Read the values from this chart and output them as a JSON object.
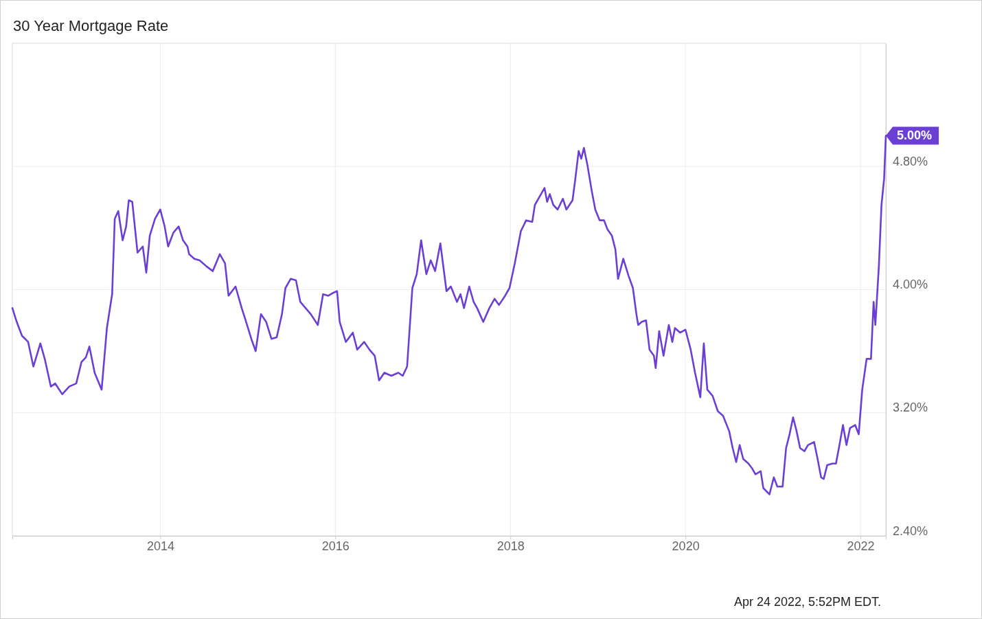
{
  "chart_data": {
    "type": "line",
    "title": "30 Year Mortgage Rate",
    "xlim": [
      2012.31,
      2022.29
    ],
    "xticks": [
      2014,
      2016,
      2018,
      2020,
      2022
    ],
    "ylim": [
      2.4,
      5.6
    ],
    "yticks": [
      {
        "value": 2.4,
        "label": "2.40%"
      },
      {
        "value": 3.2,
        "label": "3.20%"
      },
      {
        "value": 4.0,
        "label": "4.00%"
      },
      {
        "value": 4.8,
        "label": "4.80%"
      }
    ],
    "grid": true,
    "series": [
      {
        "color": "#6b3fd4",
        "x": [
          2012.31,
          2012.36,
          2012.42,
          2012.49,
          2012.55,
          2012.63,
          2012.68,
          2012.75,
          2012.8,
          2012.88,
          2012.96,
          2013.04,
          2013.1,
          2013.15,
          2013.19,
          2013.25,
          2013.33,
          2013.39,
          2013.45,
          2013.48,
          2013.52,
          2013.57,
          2013.61,
          2013.64,
          2013.68,
          2013.74,
          2013.8,
          2013.84,
          2013.88,
          2013.94,
          2014.0,
          2014.05,
          2014.09,
          2014.15,
          2014.21,
          2014.26,
          2014.31,
          2014.33,
          2014.39,
          2014.45,
          2014.53,
          2014.6,
          2014.68,
          2014.74,
          2014.78,
          2014.86,
          2014.93,
          2014.97,
          2015.04,
          2015.09,
          2015.15,
          2015.21,
          2015.27,
          2015.33,
          2015.39,
          2015.43,
          2015.49,
          2015.55,
          2015.6,
          2015.66,
          2015.72,
          2015.8,
          2015.86,
          2015.92,
          2015.98,
          2016.02,
          2016.05,
          2016.12,
          2016.2,
          2016.25,
          2016.33,
          2016.39,
          2016.45,
          2016.5,
          2016.56,
          2016.64,
          2016.72,
          2016.77,
          2016.82,
          2016.88,
          2016.93,
          2016.98,
          2017.04,
          2017.09,
          2017.14,
          2017.2,
          2017.27,
          2017.32,
          2017.39,
          2017.43,
          2017.47,
          2017.53,
          2017.58,
          2017.62,
          2017.69,
          2017.76,
          2017.82,
          2017.87,
          2017.94,
          2017.99,
          2018.05,
          2018.12,
          2018.18,
          2018.25,
          2018.28,
          2018.39,
          2018.42,
          2018.45,
          2018.49,
          2018.54,
          2018.6,
          2018.64,
          2018.71,
          2018.74,
          2018.78,
          2018.81,
          2018.84,
          2018.88,
          2018.93,
          2018.97,
          2019.02,
          2019.07,
          2019.11,
          2019.16,
          2019.2,
          2019.23,
          2019.29,
          2019.35,
          2019.4,
          2019.44,
          2019.46,
          2019.5,
          2019.55,
          2019.59,
          2019.64,
          2019.66,
          2019.7,
          2019.75,
          2019.81,
          2019.85,
          2019.88,
          2019.94,
          2020.0,
          2020.06,
          2020.11,
          2020.17,
          2020.21,
          2020.25,
          2020.31,
          2020.37,
          2020.43,
          2020.5,
          2020.54,
          2020.58,
          2020.62,
          2020.66,
          2020.72,
          2020.76,
          2020.8,
          2020.86,
          2020.89,
          2020.96,
          2021.01,
          2021.05,
          2021.11,
          2021.15,
          2021.19,
          2021.23,
          2021.27,
          2021.31,
          2021.36,
          2021.4,
          2021.47,
          2021.51,
          2021.55,
          2021.58,
          2021.62,
          2021.68,
          2021.72,
          2021.76,
          2021.8,
          2021.84,
          2021.88,
          2021.94,
          2021.98,
          2022.02,
          2022.07,
          2022.12,
          2022.15,
          2022.17,
          2022.21,
          2022.24,
          2022.27,
          2022.29
        ],
        "values": [
          3.88,
          3.79,
          3.7,
          3.66,
          3.5,
          3.65,
          3.55,
          3.37,
          3.39,
          3.32,
          3.37,
          3.39,
          3.53,
          3.56,
          3.63,
          3.46,
          3.35,
          3.75,
          3.97,
          4.46,
          4.51,
          4.32,
          4.41,
          4.58,
          4.57,
          4.24,
          4.28,
          4.11,
          4.35,
          4.46,
          4.52,
          4.41,
          4.28,
          4.37,
          4.41,
          4.32,
          4.28,
          4.23,
          4.2,
          4.19,
          4.15,
          4.12,
          4.23,
          4.17,
          3.96,
          4.02,
          3.88,
          3.81,
          3.68,
          3.6,
          3.84,
          3.79,
          3.68,
          3.69,
          3.84,
          4.01,
          4.07,
          4.06,
          3.92,
          3.88,
          3.84,
          3.77,
          3.97,
          3.96,
          3.98,
          3.99,
          3.79,
          3.66,
          3.72,
          3.61,
          3.66,
          3.61,
          3.57,
          3.41,
          3.46,
          3.44,
          3.46,
          3.44,
          3.5,
          4.01,
          4.1,
          4.32,
          4.1,
          4.19,
          4.12,
          4.3,
          3.99,
          4.02,
          3.92,
          3.97,
          3.88,
          4.02,
          3.92,
          3.88,
          3.79,
          3.88,
          3.94,
          3.9,
          3.96,
          4.01,
          4.17,
          4.38,
          4.45,
          4.44,
          4.55,
          4.66,
          4.57,
          4.62,
          4.55,
          4.52,
          4.59,
          4.52,
          4.58,
          4.71,
          4.9,
          4.85,
          4.92,
          4.81,
          4.64,
          4.52,
          4.45,
          4.45,
          4.39,
          4.35,
          4.26,
          4.07,
          4.2,
          4.09,
          4.01,
          3.84,
          3.77,
          3.79,
          3.8,
          3.61,
          3.57,
          3.49,
          3.73,
          3.57,
          3.77,
          3.66,
          3.75,
          3.72,
          3.74,
          3.61,
          3.46,
          3.3,
          3.65,
          3.35,
          3.31,
          3.21,
          3.18,
          3.08,
          2.97,
          2.88,
          2.99,
          2.9,
          2.87,
          2.84,
          2.8,
          2.82,
          2.71,
          2.67,
          2.78,
          2.72,
          2.72,
          2.97,
          3.06,
          3.17,
          3.08,
          2.97,
          2.95,
          2.99,
          3.01,
          2.9,
          2.78,
          2.77,
          2.86,
          2.87,
          2.87,
          2.99,
          3.12,
          2.99,
          3.1,
          3.12,
          3.06,
          3.35,
          3.55,
          3.55,
          3.92,
          3.77,
          4.15,
          4.55,
          4.72,
          5.0
        ]
      }
    ],
    "annotations": [
      {
        "text": "5.00%",
        "x": 2022.29,
        "y": 5.0
      },
      "Apr 24 2022, 5:52PM EDT."
    ]
  }
}
